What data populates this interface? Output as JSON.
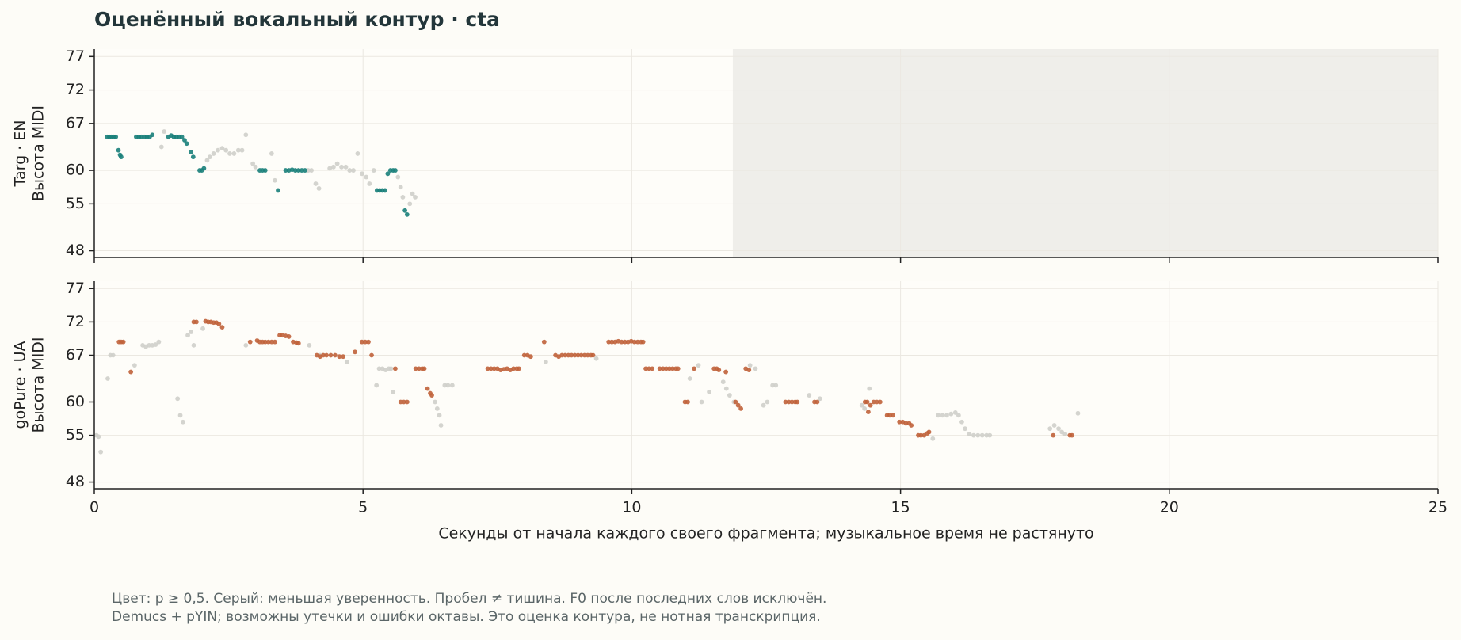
{
  "title": "Оценённый вокальный контур · cta",
  "chart_data": [
    {
      "type": "scatter",
      "ylabel": [
        "Targ · EN",
        "Высота MIDI"
      ],
      "xlim": [
        0,
        25
      ],
      "xticks": [
        0,
        5,
        10,
        15,
        20,
        25
      ],
      "ylim": [
        47,
        78.1
      ],
      "yticks": [
        48,
        55,
        60,
        67,
        72,
        77
      ],
      "grid": true,
      "shade_x": [
        11.88,
        25
      ],
      "series": [
        {
          "color": "#cfcfca",
          "x": [
            1.25,
            1.3,
            2.1,
            2.15,
            2.22,
            2.3,
            2.38,
            2.45,
            2.52,
            2.6,
            2.68,
            2.75,
            2.82,
            2.95,
            3.0,
            3.3,
            3.36,
            3.98,
            4.04,
            4.12,
            4.18,
            4.38,
            4.45,
            4.52,
            4.6,
            4.68,
            4.75,
            4.82,
            4.9,
            4.98,
            5.06,
            5.12,
            5.2,
            5.65,
            5.7,
            5.74,
            5.87,
            5.92,
            5.97
          ],
          "values": [
            63.5,
            65.8,
            61.5,
            62,
            62.5,
            63,
            63.3,
            63,
            62.5,
            62.5,
            63,
            63,
            65.3,
            61,
            60.5,
            62.5,
            58.5,
            60,
            60,
            58,
            57.3,
            60.3,
            60.5,
            61,
            60.5,
            60.5,
            60,
            60,
            62.5,
            59.5,
            59,
            58,
            60,
            59,
            57.5,
            56,
            55,
            56.5,
            56
          ]
        },
        {
          "color": "#1a7f7a",
          "x": [
            0.24,
            0.28,
            0.32,
            0.36,
            0.4,
            0.45,
            0.48,
            0.5,
            0.78,
            0.83,
            0.88,
            0.93,
            0.98,
            1.03,
            1.08,
            1.38,
            1.43,
            1.48,
            1.53,
            1.58,
            1.63,
            1.68,
            1.72,
            1.8,
            1.84,
            1.96,
            2.0,
            2.04,
            3.08,
            3.13,
            3.18,
            3.42,
            3.56,
            3.62,
            3.68,
            3.74,
            3.8,
            3.86,
            3.92,
            5.26,
            5.31,
            5.36,
            5.41,
            5.46,
            5.51,
            5.56,
            5.6,
            5.78,
            5.82
          ],
          "values": [
            65,
            65,
            65,
            65,
            65,
            63,
            62.3,
            62,
            65,
            65,
            65,
            65,
            65,
            65,
            65.3,
            65,
            65.2,
            65,
            65,
            65,
            65,
            64.5,
            64,
            62.7,
            62,
            60,
            60,
            60.3,
            60,
            60,
            60,
            57,
            60,
            60,
            60.1,
            60,
            60,
            60,
            60,
            57,
            57,
            57,
            57,
            59.5,
            60,
            60,
            60,
            54,
            53.4
          ]
        }
      ]
    },
    {
      "type": "scatter",
      "ylabel": [
        "goPure · UA",
        "Высота MIDI"
      ],
      "xlabel": "Секунды от начала каждого своего фрагмента; музыкальное время не растянуто",
      "xlim": [
        0,
        25
      ],
      "xticks": [
        0,
        5,
        10,
        15,
        20,
        25
      ],
      "ylim": [
        47,
        78.1
      ],
      "yticks": [
        48,
        55,
        60,
        67,
        72,
        77
      ],
      "grid": true,
      "series": [
        {
          "color": "#cfcfca",
          "x": [
            0.04,
            0.08,
            0.12,
            0.25,
            0.3,
            0.35,
            0.75,
            0.9,
            0.96,
            1.02,
            1.08,
            1.14,
            1.2,
            1.55,
            1.6,
            1.65,
            1.74,
            1.8,
            1.85,
            2.02,
            2.82,
            4.0,
            4.2,
            4.7,
            5.25,
            5.3,
            5.36,
            5.42,
            5.48,
            5.52,
            5.56,
            6.34,
            6.38,
            6.42,
            6.45,
            6.52,
            6.58,
            6.66,
            8.4,
            9.34,
            11.08,
            11.24,
            11.3,
            11.44,
            11.7,
            11.76,
            11.82,
            11.9,
            12.2,
            12.3,
            12.45,
            12.52,
            12.62,
            12.68,
            13.3,
            13.5,
            14.28,
            14.33,
            14.42,
            15.6,
            15.7,
            15.78,
            15.86,
            15.94,
            16.02,
            16.08,
            16.14,
            16.2,
            16.28,
            16.36,
            16.44,
            16.52,
            16.6,
            16.66,
            17.78,
            17.86,
            17.94,
            18.0,
            18.06,
            18.3
          ],
          "values": [
            55,
            54.8,
            52.5,
            63.5,
            67,
            67,
            65.5,
            68.5,
            68.3,
            68.5,
            68.5,
            68.6,
            69,
            60.5,
            58,
            57,
            70,
            70.5,
            68.5,
            71,
            68.5,
            68.5,
            67,
            66,
            62.5,
            65,
            65,
            64.8,
            65,
            65,
            61.5,
            60,
            59,
            58,
            56.5,
            62.5,
            62.5,
            62.5,
            66,
            66.5,
            63.5,
            65.5,
            60,
            61.5,
            63,
            62,
            61,
            60,
            65.5,
            65,
            59.5,
            60,
            62.5,
            62.5,
            61,
            60.5,
            59.5,
            59,
            62,
            54.5,
            58,
            58,
            58,
            58.2,
            58.4,
            58,
            57,
            56,
            55.2,
            55,
            55,
            55,
            55,
            55,
            56,
            56.5,
            56,
            55.5,
            55.2,
            58.3
          ]
        },
        {
          "color": "#c0623a",
          "x": [
            0.46,
            0.5,
            0.54,
            0.68,
            1.85,
            1.9,
            2.07,
            2.12,
            2.17,
            2.22,
            2.27,
            2.32,
            2.38,
            2.9,
            3.03,
            3.08,
            3.13,
            3.18,
            3.24,
            3.3,
            3.36,
            3.45,
            3.5,
            3.56,
            3.62,
            3.7,
            3.76,
            3.8,
            4.14,
            4.2,
            4.26,
            4.32,
            4.4,
            4.48,
            4.56,
            4.63,
            4.85,
            4.98,
            5.04,
            5.1,
            5.16,
            5.6,
            5.7,
            5.76,
            5.82,
            5.98,
            6.04,
            6.1,
            6.14,
            6.2,
            6.25,
            6.28,
            7.32,
            7.38,
            7.44,
            7.5,
            7.56,
            7.62,
            7.68,
            7.74,
            7.8,
            7.86,
            7.9,
            8.0,
            8.06,
            8.12,
            8.37,
            8.58,
            8.64,
            8.7,
            8.76,
            8.82,
            8.88,
            8.94,
            9.0,
            9.06,
            9.12,
            9.18,
            9.24,
            9.28,
            9.57,
            9.63,
            9.69,
            9.75,
            9.81,
            9.87,
            9.93,
            9.99,
            10.05,
            10.11,
            10.17,
            10.21,
            10.26,
            10.32,
            10.38,
            10.52,
            10.58,
            10.64,
            10.7,
            10.76,
            10.82,
            10.86,
            10.99,
            11.04,
            11.16,
            11.53,
            11.58,
            11.62,
            11.75,
            11.93,
            11.98,
            12.03,
            12.12,
            12.18,
            12.86,
            12.92,
            12.98,
            13.04,
            13.08,
            13.4,
            13.45,
            14.34,
            14.38,
            14.4,
            14.44,
            14.5,
            14.56,
            14.62,
            14.75,
            14.8,
            14.86,
            14.98,
            15.04,
            15.1,
            15.16,
            15.2,
            15.33,
            15.38,
            15.44,
            15.5,
            15.53,
            17.84,
            18.15,
            18.19
          ],
          "values": [
            69,
            69,
            69,
            64.5,
            72,
            72,
            72.1,
            72,
            72,
            71.9,
            71.9,
            71.7,
            71.2,
            69,
            69.2,
            69,
            69,
            69,
            69,
            69,
            69,
            70,
            70,
            69.9,
            69.8,
            69,
            68.9,
            68.8,
            67,
            66.8,
            67,
            67,
            67,
            67,
            66.8,
            66.8,
            67.5,
            69,
            69,
            69,
            67,
            65,
            60,
            60,
            60,
            65,
            65,
            65,
            65,
            62,
            61.3,
            61,
            65,
            65,
            65,
            65,
            64.8,
            64.9,
            65,
            64.8,
            65,
            65,
            65,
            67,
            67,
            66.8,
            69,
            67,
            66.8,
            67,
            67,
            67,
            67,
            67,
            67,
            67,
            67,
            67,
            67,
            67,
            69,
            69,
            69,
            69.1,
            69,
            69,
            69,
            69.1,
            69,
            69,
            69,
            69,
            65,
            65,
            65,
            65,
            65,
            65,
            65,
            65,
            65,
            65,
            60,
            60,
            65,
            65,
            65,
            64.8,
            64.5,
            60,
            59.5,
            59,
            65,
            64.8,
            60,
            60,
            60,
            60,
            60,
            60,
            60,
            60,
            60,
            58.5,
            59.5,
            60,
            60,
            60,
            58,
            58,
            58,
            57,
            57,
            56.8,
            56.8,
            56.5,
            55,
            55,
            55,
            55.3,
            55.5,
            55,
            55,
            55
          ]
        }
      ]
    }
  ],
  "notes": [
    "Цвет: p ≥ 0,5. Серый: меньшая уверенность. Пробел ≠ тишина. F0 после последних слов исключён.",
    "Demucs + pYIN; возможны утечки и ошибки октавы. Это оценка контура, не нотная транскрипция."
  ]
}
